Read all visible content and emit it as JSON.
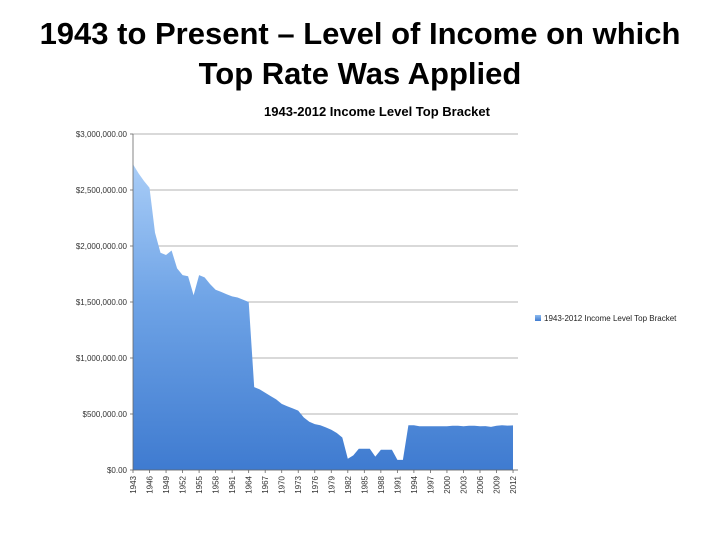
{
  "slide": {
    "title_line1": "1943 to Present – Level of Income on which",
    "title_line2": "Top Rate Was Applied"
  },
  "chart_data": {
    "type": "area",
    "title": "1943-2012 Income Level Top Bracket",
    "xlabel": "",
    "ylabel": "",
    "ylim": [
      0,
      3000000
    ],
    "y_ticks": [
      "$0.00",
      "$500,000.00",
      "$1,000,000.00",
      "$1,500,000.00",
      "$2,000,000.00",
      "$2,500,000.00",
      "$3,000,000.00"
    ],
    "x_tick_labels": [
      "1943",
      "1946",
      "1949",
      "1952",
      "1955",
      "1958",
      "1961",
      "1964",
      "1967",
      "1970",
      "1973",
      "1976",
      "1979",
      "1982",
      "1985",
      "1988",
      "1991",
      "1994",
      "1997",
      "2000",
      "2003",
      "2006",
      "2009",
      "2012"
    ],
    "grid": "horizontal",
    "legend": "right",
    "series": [
      {
        "name": "1943-2012 Income Level Top Bracket",
        "color": "#4a86d8",
        "x": [
          1943,
          1944,
          1945,
          1946,
          1947,
          1948,
          1949,
          1950,
          1951,
          1952,
          1953,
          1954,
          1955,
          1956,
          1957,
          1958,
          1959,
          1960,
          1961,
          1962,
          1963,
          1964,
          1965,
          1966,
          1967,
          1968,
          1969,
          1970,
          1971,
          1972,
          1973,
          1974,
          1975,
          1976,
          1977,
          1978,
          1979,
          1980,
          1981,
          1982,
          1983,
          1984,
          1985,
          1986,
          1987,
          1988,
          1989,
          1990,
          1991,
          1992,
          1993,
          1994,
          1995,
          1996,
          1997,
          1998,
          1999,
          2000,
          2001,
          2002,
          2003,
          2004,
          2005,
          2006,
          2007,
          2008,
          2009,
          2010,
          2011,
          2012
        ],
        "values": [
          2730000,
          2650000,
          2580000,
          2520000,
          2120000,
          1940000,
          1920000,
          1960000,
          1800000,
          1740000,
          1730000,
          1560000,
          1740000,
          1720000,
          1660000,
          1610000,
          1590000,
          1570000,
          1550000,
          1540000,
          1520000,
          1500000,
          740000,
          720000,
          690000,
          660000,
          630000,
          590000,
          570000,
          550000,
          530000,
          470000,
          430000,
          410000,
          400000,
          380000,
          360000,
          330000,
          290000,
          100000,
          130000,
          190000,
          190000,
          190000,
          120000,
          180000,
          180000,
          180000,
          90000,
          90000,
          400000,
          400000,
          390000,
          390000,
          390000,
          390000,
          390000,
          390000,
          395000,
          395000,
          390000,
          395000,
          395000,
          390000,
          392000,
          385000,
          395000,
          400000,
          396000,
          398000
        ]
      }
    ]
  }
}
